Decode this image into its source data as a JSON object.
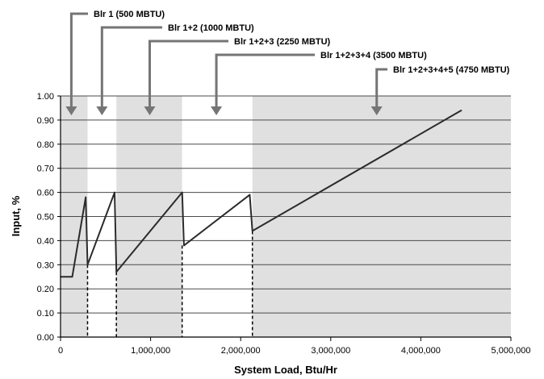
{
  "chart_data": {
    "type": "line",
    "xlabel": "System Load, Btu/Hr",
    "ylabel": "Input, %",
    "xlim": [
      0,
      5000000
    ],
    "ylim": [
      0,
      1.0
    ],
    "x_ticks": [
      0,
      1000000,
      2000000,
      3000000,
      4000000,
      5000000
    ],
    "x_tick_labels": [
      "0",
      "1,000,000",
      "2,000,000",
      "3,000,000",
      "4,000,000",
      "5,000,000"
    ],
    "y_ticks": [
      0,
      0.1,
      0.2,
      0.3,
      0.4,
      0.5,
      0.6,
      0.7,
      0.8,
      0.9,
      1.0
    ],
    "y_tick_labels": [
      "0.00",
      "0.10",
      "0.20",
      "0.30",
      "0.40",
      "0.50",
      "0.60",
      "0.70",
      "0.80",
      "0.90",
      "1.00"
    ],
    "grid": "horizontal",
    "series": [
      {
        "x": [
          0,
          130000,
          280000,
          300000,
          600000,
          620000,
          1350000,
          1370000,
          2100000,
          2130000,
          4450000
        ],
        "y": [
          0.25,
          0.25,
          0.58,
          0.3,
          0.6,
          0.27,
          0.6,
          0.38,
          0.59,
          0.44,
          0.94
        ]
      }
    ],
    "bands": [
      {
        "x0": 0,
        "x1": 300000,
        "shade": "gray"
      },
      {
        "x0": 300000,
        "x1": 620000,
        "shade": "white"
      },
      {
        "x0": 620000,
        "x1": 1350000,
        "shade": "gray"
      },
      {
        "x0": 1350000,
        "x1": 2130000,
        "shade": "white"
      },
      {
        "x0": 2130000,
        "x1": 5000000,
        "shade": "gray"
      }
    ],
    "staging_lines": [
      {
        "x": 300000,
        "y": 0.3
      },
      {
        "x": 620000,
        "y": 0.27
      },
      {
        "x": 1350000,
        "y": 0.38
      },
      {
        "x": 2130000,
        "y": 0.44
      }
    ],
    "annotations": [
      {
        "text": "Blr 1 (500 MBTU)",
        "x": 120000
      },
      {
        "text": "Blr 1+2 (1000 MBTU)",
        "x": 460000
      },
      {
        "text": "Blr 1+2+3 (2250 MBTU)",
        "x": 990000
      },
      {
        "text": "Blr 1+2+3+4 (3500 MBTU)",
        "x": 1730000
      },
      {
        "text": "Blr 1+2+3+4+5 (4750 MBTU)",
        "x": 3510000
      }
    ],
    "colors": {
      "band": "#e0e0e0",
      "line": "#2b2b2b",
      "arrow": "#757575",
      "grid": "#4a4a4a"
    }
  }
}
